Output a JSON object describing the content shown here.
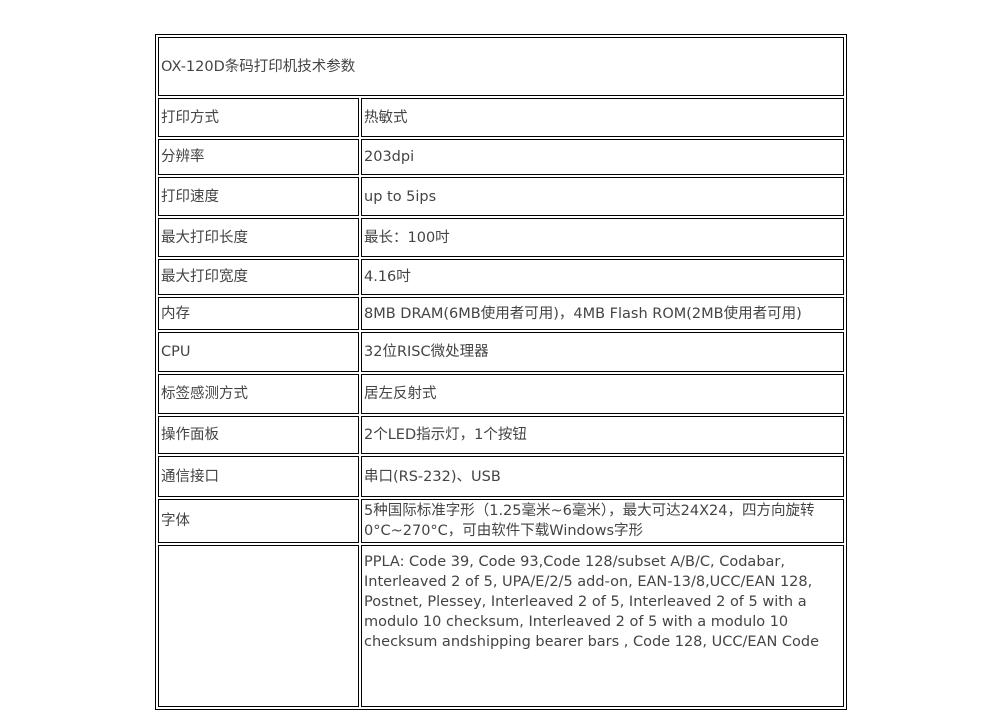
{
  "title": "OX-120D条码打印机技术参数",
  "rows": [
    {
      "label": "打印方式",
      "value": "热敏式"
    },
    {
      "label": "分辨率",
      "value": "203dpi"
    },
    {
      "label": "打印速度",
      "value": "up to 5ips"
    },
    {
      "label": "最大打印长度",
      "value": "最长：100吋"
    },
    {
      "label": "最大打印宽度",
      "value": "4.16吋"
    },
    {
      "label": "内存",
      "value": "8MB DRAM(6MB使用者可用)，4MB Flash ROM(2MB使用者可用)"
    },
    {
      "label": "CPU",
      "value": "32位RISC微处理器"
    },
    {
      "label": "标签感测方式",
      "value": "居左反射式"
    },
    {
      "label": "操作面板",
      "value": "2个LED指示灯，1个按钮"
    },
    {
      "label": "通信接口",
      "value": "串口(RS-232)、USB"
    },
    {
      "label": "字体",
      "value": "5种国际标准字形（1.25毫米~6毫米），最大可达24X24，四方向旋转0°C~270°C，可由软件下载Windows字形"
    },
    {
      "label": "",
      "value": "PPLA: Code 39, Code 93,Code 128/subset A/B/C, Codabar, Interleaved 2 of 5, UPA/E/2/5 add-on, EAN-13/8,UCC/EAN 128, Postnet, Plessey, Interleaved 2 of 5, Interleaved 2 of 5 with a modulo 10 checksum, Interleaved 2 of 5 with a modulo 10 checksum andshipping bearer bars , Code 128, UCC/EAN Code"
    }
  ]
}
